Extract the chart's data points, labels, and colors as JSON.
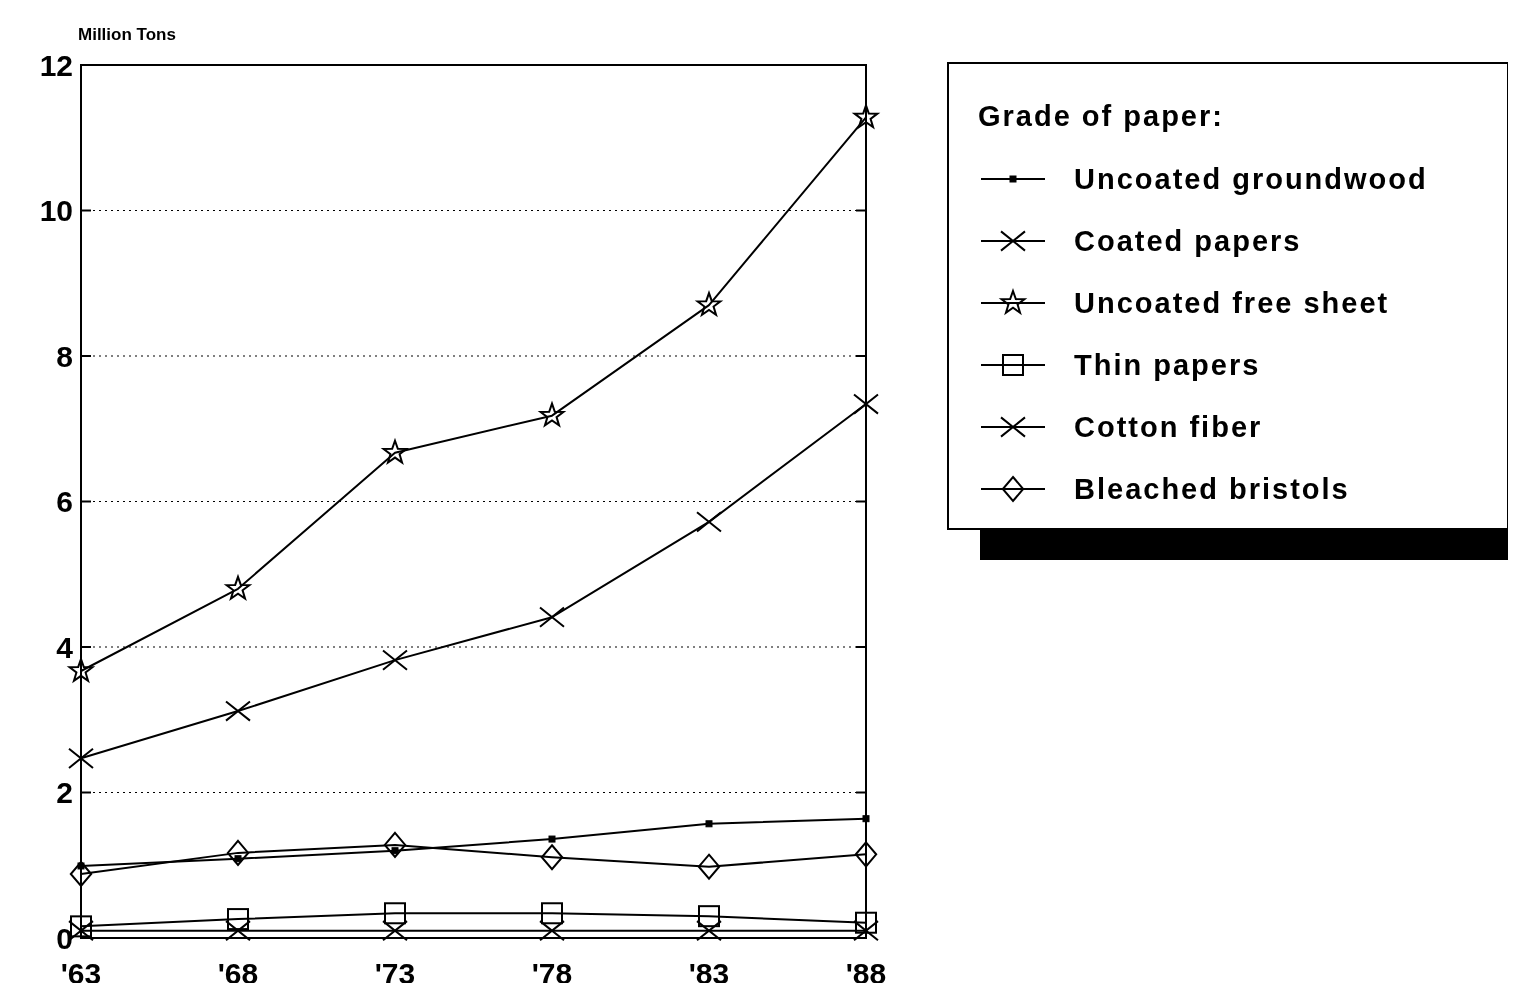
{
  "chart_data": {
    "type": "line",
    "ylabel": "Million Tons",
    "legend_title": "Grade of paper:",
    "categories": [
      "'63",
      "'68",
      "'73",
      "'78",
      "'83",
      "'88"
    ],
    "series": [
      {
        "name": "Uncoated groundwood",
        "color": "#000000",
        "marker": "square",
        "values": [
          0.99,
          1.09,
          1.2,
          1.36,
          1.57,
          1.64
        ]
      },
      {
        "name": "Coated papers",
        "color": "#000000",
        "marker": "cross",
        "values": [
          2.47,
          3.12,
          3.82,
          4.41,
          5.72,
          7.34
        ]
      },
      {
        "name": "Uncoated free sheet",
        "color": "#000000",
        "marker": "star",
        "values": [
          3.67,
          4.8,
          6.67,
          7.18,
          8.7,
          11.28
        ]
      },
      {
        "name": "Thin papers",
        "color": "#000000",
        "marker": "square",
        "values": [
          0.16,
          0.26,
          0.34,
          0.34,
          0.3,
          0.21
        ]
      },
      {
        "name": "Cotton fiber",
        "color": "#000000",
        "marker": "cross",
        "values": [
          0.1,
          0.1,
          0.1,
          0.1,
          0.1,
          0.1
        ]
      },
      {
        "name": "Bleached bristols",
        "color": "#000000",
        "marker": "diamond",
        "values": [
          0.88,
          1.17,
          1.28,
          1.11,
          0.98,
          1.15
        ]
      }
    ],
    "ylim": [
      0,
      12
    ],
    "yticks": [
      0,
      2,
      4,
      6,
      8,
      10,
      12
    ],
    "grid": "y",
    "legend": "right",
    "line_style": "solid"
  }
}
